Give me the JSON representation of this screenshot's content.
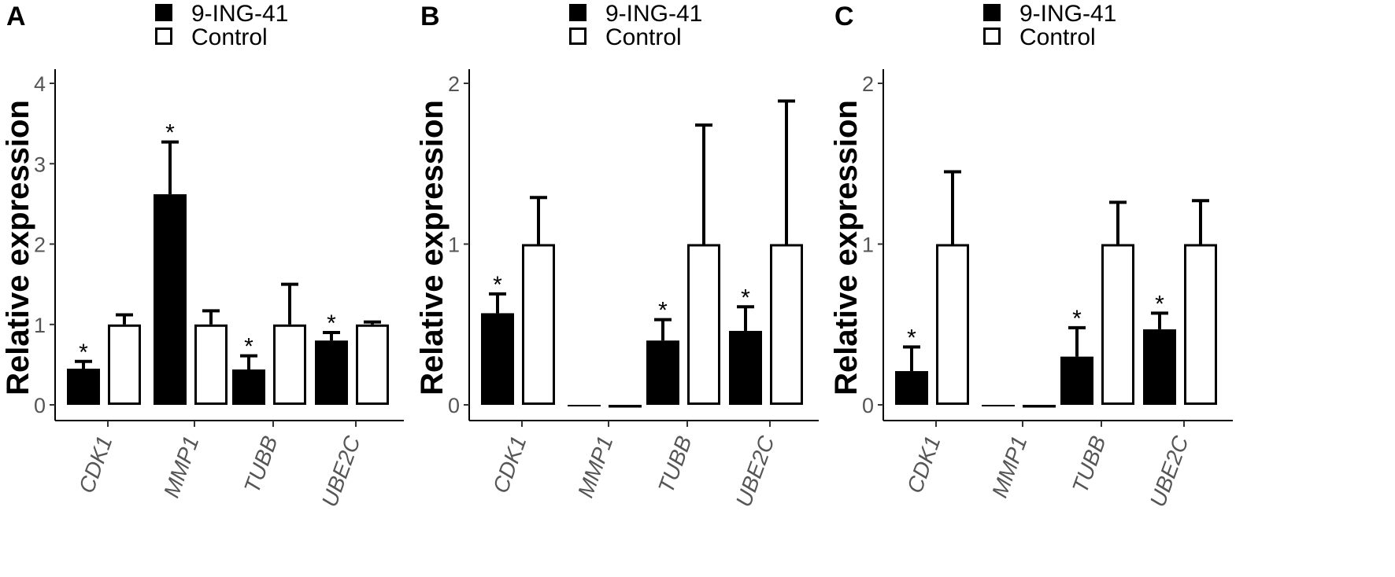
{
  "chart_data": [
    {
      "panel": "A",
      "type": "bar",
      "ylabel": "Relative expression",
      "ylim": [
        0,
        4.2
      ],
      "yticks": [
        "0",
        "1",
        "2",
        "3",
        "4"
      ],
      "categories": [
        "CDK1",
        "MMP1",
        "TUBB",
        "UBE2C"
      ],
      "series": [
        {
          "name": "9-ING-41",
          "fill": "#000000",
          "values": [
            0.45,
            2.62,
            0.44,
            0.8
          ],
          "errors": [
            0.09,
            0.65,
            0.17,
            0.1
          ],
          "significant": [
            "*",
            "*",
            "*",
            "*"
          ]
        },
        {
          "name": "Control",
          "fill": "#ffffff",
          "values": [
            1.0,
            1.0,
            1.0,
            1.0
          ],
          "errors": [
            0.12,
            0.17,
            0.5,
            0.03
          ],
          "significant": [
            "",
            "",
            "",
            ""
          ]
        }
      ]
    },
    {
      "panel": "B",
      "type": "bar",
      "ylabel": "Relative expression",
      "ylim": [
        0,
        2.1
      ],
      "yticks": [
        "0",
        "1",
        "2"
      ],
      "categories": [
        "CDK1",
        "MMP1",
        "TUBB",
        "UBE2C"
      ],
      "series": [
        {
          "name": "9-ING-41",
          "fill": "#000000",
          "values": [
            0.57,
            0.0,
            0.4,
            0.46
          ],
          "errors": [
            0.12,
            0.0,
            0.13,
            0.15
          ],
          "significant": [
            "*",
            "",
            "*",
            "*"
          ]
        },
        {
          "name": "Control",
          "fill": "#ffffff",
          "values": [
            1.0,
            0.0,
            1.0,
            1.0
          ],
          "errors": [
            0.29,
            0.0,
            0.74,
            0.89
          ],
          "significant": [
            "",
            "",
            "",
            ""
          ]
        }
      ]
    },
    {
      "panel": "C",
      "type": "bar",
      "ylabel": "Relative expression",
      "ylim": [
        0,
        2.1
      ],
      "yticks": [
        "0",
        "1",
        "2"
      ],
      "categories": [
        "CDK1",
        "MMP1",
        "TUBB",
        "UBE2C"
      ],
      "series": [
        {
          "name": "9-ING-41",
          "fill": "#000000",
          "values": [
            0.21,
            0.0,
            0.3,
            0.47
          ],
          "errors": [
            0.15,
            0.0,
            0.18,
            0.1
          ],
          "significant": [
            "*",
            "",
            "*",
            "*"
          ]
        },
        {
          "name": "Control",
          "fill": "#ffffff",
          "values": [
            1.0,
            0.0,
            1.0,
            1.0
          ],
          "errors": [
            0.45,
            0.0,
            0.26,
            0.27
          ],
          "significant": [
            "",
            "",
            "",
            ""
          ]
        }
      ]
    }
  ]
}
